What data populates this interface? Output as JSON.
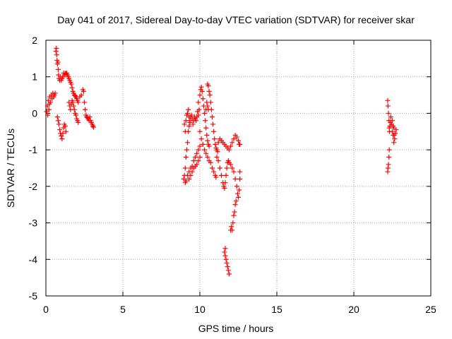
{
  "chart_data": {
    "type": "scatter",
    "title": "Day 041 of 2017, Sidereal Day-to-day VTEC variation (SDTVAR) for receiver skar",
    "xlabel": "GPS time / hours",
    "ylabel": "SDTVAR / TECUs",
    "xlim": [
      0,
      25
    ],
    "ylim": [
      -5,
      2
    ],
    "xticks": [
      0,
      5,
      10,
      15,
      20,
      25
    ],
    "yticks": [
      -5,
      -4,
      -3,
      -2,
      -1,
      0,
      1,
      2
    ],
    "grid": true,
    "legend": "none",
    "marker": "+",
    "color": "#ff0000",
    "series": [
      {
        "name": "SDTVAR",
        "points": [
          [
            0.05,
            0.05
          ],
          [
            0.1,
            0.2
          ],
          [
            0.15,
            0.35
          ],
          [
            0.2,
            0.1
          ],
          [
            0.25,
            0.45
          ],
          [
            0.3,
            0.3
          ],
          [
            0.35,
            0.5
          ],
          [
            0.4,
            0.4
          ],
          [
            0.45,
            0.55
          ],
          [
            0.5,
            0.45
          ],
          [
            0.55,
            0.5
          ],
          [
            0.6,
            0.55
          ],
          [
            0.12,
            -0.05
          ],
          [
            0.22,
            0.25
          ],
          [
            0.65,
            1.7
          ],
          [
            0.68,
            1.78
          ],
          [
            0.7,
            1.6
          ],
          [
            0.72,
            1.45
          ],
          [
            0.75,
            1.35
          ],
          [
            0.78,
            1.4
          ],
          [
            0.8,
            1.2
          ],
          [
            0.82,
            1.05
          ],
          [
            0.85,
            0.95
          ],
          [
            0.9,
            0.9
          ],
          [
            0.95,
            1.0
          ],
          [
            1.0,
            0.9
          ],
          [
            1.05,
            0.95
          ],
          [
            1.1,
            1.0
          ],
          [
            1.15,
            1.1
          ],
          [
            1.2,
            1.05
          ],
          [
            1.25,
            1.1
          ],
          [
            1.3,
            1.08
          ],
          [
            1.35,
            1.1
          ],
          [
            1.4,
            1.05
          ],
          [
            1.45,
            1.0
          ],
          [
            1.5,
            0.95
          ],
          [
            1.55,
            0.9
          ],
          [
            1.6,
            0.85
          ],
          [
            1.65,
            0.8
          ],
          [
            1.7,
            0.7
          ],
          [
            1.75,
            0.6
          ],
          [
            1.8,
            0.55
          ],
          [
            1.85,
            0.5
          ],
          [
            1.9,
            0.48
          ],
          [
            1.95,
            0.45
          ],
          [
            2.0,
            0.4
          ],
          [
            2.05,
            0.35
          ],
          [
            2.1,
            0.3
          ],
          [
            2.2,
            0.45
          ],
          [
            2.3,
            0.5
          ],
          [
            0.75,
            -0.1
          ],
          [
            0.8,
            -0.2
          ],
          [
            0.85,
            -0.3
          ],
          [
            0.9,
            -0.45
          ],
          [
            0.95,
            -0.55
          ],
          [
            1.0,
            -0.62
          ],
          [
            1.05,
            -0.7
          ],
          [
            1.1,
            -0.55
          ],
          [
            1.15,
            -0.4
          ],
          [
            1.2,
            -0.3
          ],
          [
            1.25,
            -0.35
          ],
          [
            1.3,
            -0.5
          ],
          [
            1.5,
            0.3
          ],
          [
            1.55,
            0.2
          ],
          [
            1.6,
            0.1
          ],
          [
            1.65,
            0.25
          ],
          [
            1.7,
            0.35
          ],
          [
            1.75,
            0.3
          ],
          [
            1.8,
            0.2
          ],
          [
            1.85,
            0.1
          ],
          [
            1.9,
            0.0
          ],
          [
            1.95,
            -0.05
          ],
          [
            2.0,
            -0.15
          ],
          [
            2.05,
            -0.2
          ],
          [
            2.1,
            -0.25
          ],
          [
            2.4,
            0.65
          ],
          [
            2.45,
            0.6
          ],
          [
            2.5,
            0.3
          ],
          [
            2.55,
            0.1
          ],
          [
            2.6,
            -0.05
          ],
          [
            2.65,
            -0.1
          ],
          [
            2.7,
            -0.12
          ],
          [
            2.75,
            -0.15
          ],
          [
            2.8,
            -0.2
          ],
          [
            2.85,
            -0.1
          ],
          [
            2.9,
            -0.2
          ],
          [
            2.95,
            -0.25
          ],
          [
            3.0,
            -0.3
          ],
          [
            3.05,
            -0.35
          ],
          [
            3.1,
            -0.38
          ],
          [
            8.95,
            -1.8
          ],
          [
            9.0,
            -1.7
          ],
          [
            9.05,
            -1.5
          ],
          [
            9.1,
            -1.2
          ],
          [
            9.15,
            -1.0
          ],
          [
            9.2,
            -0.8
          ],
          [
            9.25,
            -0.5
          ],
          [
            9.3,
            -0.35
          ],
          [
            9.35,
            -0.2
          ],
          [
            9.4,
            -0.1
          ],
          [
            9.45,
            -0.05
          ],
          [
            9.5,
            -0.15
          ],
          [
            9.55,
            -0.3
          ],
          [
            9.6,
            -0.2
          ],
          [
            9.65,
            -0.1
          ],
          [
            9.7,
            -0.15
          ],
          [
            9.75,
            -0.2
          ],
          [
            9.8,
            -0.1
          ],
          [
            9.85,
            0.05
          ],
          [
            9.9,
            -0.05
          ],
          [
            9.95,
            0.1
          ],
          [
            9.0,
            -0.3
          ],
          [
            9.05,
            -0.5
          ],
          [
            9.1,
            -0.2
          ],
          [
            9.15,
            -0.05
          ],
          [
            9.2,
            0.0
          ],
          [
            9.25,
            0.1
          ],
          [
            9.3,
            -0.1
          ],
          [
            9.35,
            -0.25
          ],
          [
            9.05,
            -1.9
          ],
          [
            9.1,
            -1.85
          ],
          [
            9.2,
            -1.7
          ],
          [
            9.3,
            -1.6
          ],
          [
            9.4,
            -1.5
          ],
          [
            9.5,
            -1.45
          ],
          [
            9.6,
            -1.3
          ],
          [
            9.7,
            -1.2
          ],
          [
            9.8,
            -1.1
          ],
          [
            9.9,
            -1.0
          ],
          [
            10.0,
            -0.9
          ],
          [
            9.3,
            -1.8
          ],
          [
            9.4,
            -1.7
          ],
          [
            9.5,
            -1.6
          ],
          [
            9.6,
            -1.5
          ],
          [
            9.7,
            -1.45
          ],
          [
            9.8,
            -1.4
          ],
          [
            9.9,
            -1.3
          ],
          [
            10.0,
            -1.2
          ],
          [
            9.9,
            0.3
          ],
          [
            10.0,
            0.5
          ],
          [
            10.05,
            0.65
          ],
          [
            10.1,
            0.72
          ],
          [
            10.15,
            0.6
          ],
          [
            10.2,
            0.4
          ],
          [
            10.25,
            0.2
          ],
          [
            10.3,
            0.0
          ],
          [
            10.35,
            -0.2
          ],
          [
            10.4,
            -0.4
          ],
          [
            10.45,
            -0.6
          ],
          [
            10.5,
            -0.75
          ],
          [
            10.55,
            -0.85
          ],
          [
            10.6,
            -0.9
          ],
          [
            10.0,
            -0.5
          ],
          [
            10.1,
            -0.7
          ],
          [
            10.2,
            -0.85
          ],
          [
            10.3,
            -1.0
          ],
          [
            10.4,
            -1.1
          ],
          [
            10.5,
            -1.2
          ],
          [
            10.6,
            -1.3
          ],
          [
            10.7,
            -1.35
          ],
          [
            10.8,
            -1.5
          ],
          [
            10.9,
            -1.6
          ],
          [
            11.0,
            -1.7
          ],
          [
            11.05,
            -1.75
          ],
          [
            10.5,
            0.8
          ],
          [
            10.55,
            0.75
          ],
          [
            10.6,
            0.6
          ],
          [
            10.65,
            0.5
          ],
          [
            10.7,
            0.3
          ],
          [
            10.75,
            0.1
          ],
          [
            10.8,
            -0.1
          ],
          [
            10.85,
            -0.3
          ],
          [
            10.9,
            -0.5
          ],
          [
            10.95,
            -0.7
          ],
          [
            11.0,
            -0.85
          ],
          [
            11.05,
            -0.95
          ],
          [
            11.1,
            -1.0
          ],
          [
            11.15,
            -1.05
          ],
          [
            10.4,
            0.1
          ],
          [
            10.45,
            0.3
          ],
          [
            10.5,
            0.2
          ],
          [
            10.55,
            0.1
          ],
          [
            11.2,
            -0.8
          ],
          [
            11.3,
            -0.7
          ],
          [
            11.4,
            -0.75
          ],
          [
            11.5,
            -0.8
          ],
          [
            11.6,
            -0.85
          ],
          [
            11.7,
            -0.9
          ],
          [
            11.8,
            -0.95
          ],
          [
            11.9,
            -1.0
          ],
          [
            12.0,
            -0.9
          ],
          [
            12.1,
            -0.8
          ],
          [
            12.2,
            -0.7
          ],
          [
            12.3,
            -0.6
          ],
          [
            12.4,
            -0.65
          ],
          [
            12.5,
            -0.75
          ],
          [
            12.55,
            -0.85
          ],
          [
            12.6,
            -0.85
          ],
          [
            11.1,
            -1.2
          ],
          [
            11.2,
            -1.3
          ],
          [
            11.3,
            -1.5
          ],
          [
            11.4,
            -1.7
          ],
          [
            11.5,
            -1.9
          ],
          [
            11.55,
            -2.0
          ],
          [
            11.6,
            -2.05
          ],
          [
            11.65,
            -1.9
          ],
          [
            11.7,
            -1.7
          ],
          [
            11.75,
            -1.5
          ],
          [
            11.8,
            -1.35
          ],
          [
            11.85,
            -1.3
          ],
          [
            11.9,
            -1.35
          ],
          [
            12.0,
            -1.4
          ],
          [
            12.1,
            -1.5
          ],
          [
            12.2,
            -1.6
          ],
          [
            12.3,
            -1.8
          ],
          [
            12.4,
            -2.0
          ],
          [
            12.45,
            -2.2
          ],
          [
            12.5,
            -2.3
          ],
          [
            12.55,
            -2.1
          ],
          [
            12.6,
            -1.8
          ],
          [
            12.6,
            -1.6
          ],
          [
            11.6,
            -3.8
          ],
          [
            11.65,
            -3.9
          ],
          [
            11.7,
            -4.0
          ],
          [
            11.75,
            -4.1
          ],
          [
            11.8,
            -4.2
          ],
          [
            11.85,
            -4.3
          ],
          [
            11.9,
            -4.4
          ],
          [
            11.65,
            -3.7
          ],
          [
            12.0,
            -3.2
          ],
          [
            12.05,
            -3.1
          ],
          [
            12.1,
            -3.2
          ],
          [
            12.15,
            -3.0
          ],
          [
            12.2,
            -2.8
          ],
          [
            12.25,
            -2.7
          ],
          [
            12.3,
            -2.5
          ],
          [
            12.35,
            -2.4
          ],
          [
            22.2,
            0.35
          ],
          [
            22.22,
            0.2
          ],
          [
            22.25,
            0.0
          ],
          [
            22.28,
            -0.2
          ],
          [
            22.3,
            -0.4
          ],
          [
            22.32,
            -0.5
          ],
          [
            22.35,
            -0.35
          ],
          [
            22.38,
            -0.25
          ],
          [
            22.2,
            -1.6
          ],
          [
            22.22,
            -1.5
          ],
          [
            22.25,
            -1.4
          ],
          [
            22.28,
            -1.2
          ],
          [
            22.3,
            -1.0
          ],
          [
            22.4,
            -0.1
          ],
          [
            22.45,
            -0.3
          ],
          [
            22.5,
            -0.5
          ],
          [
            22.55,
            -0.6
          ],
          [
            22.6,
            -0.8
          ],
          [
            22.65,
            -0.7
          ],
          [
            22.7,
            -0.55
          ],
          [
            22.75,
            -0.45
          ],
          [
            22.5,
            -0.2
          ],
          [
            22.55,
            -0.35
          ],
          [
            22.6,
            -0.4
          ],
          [
            22.62,
            -0.6
          ]
        ]
      }
    ]
  }
}
